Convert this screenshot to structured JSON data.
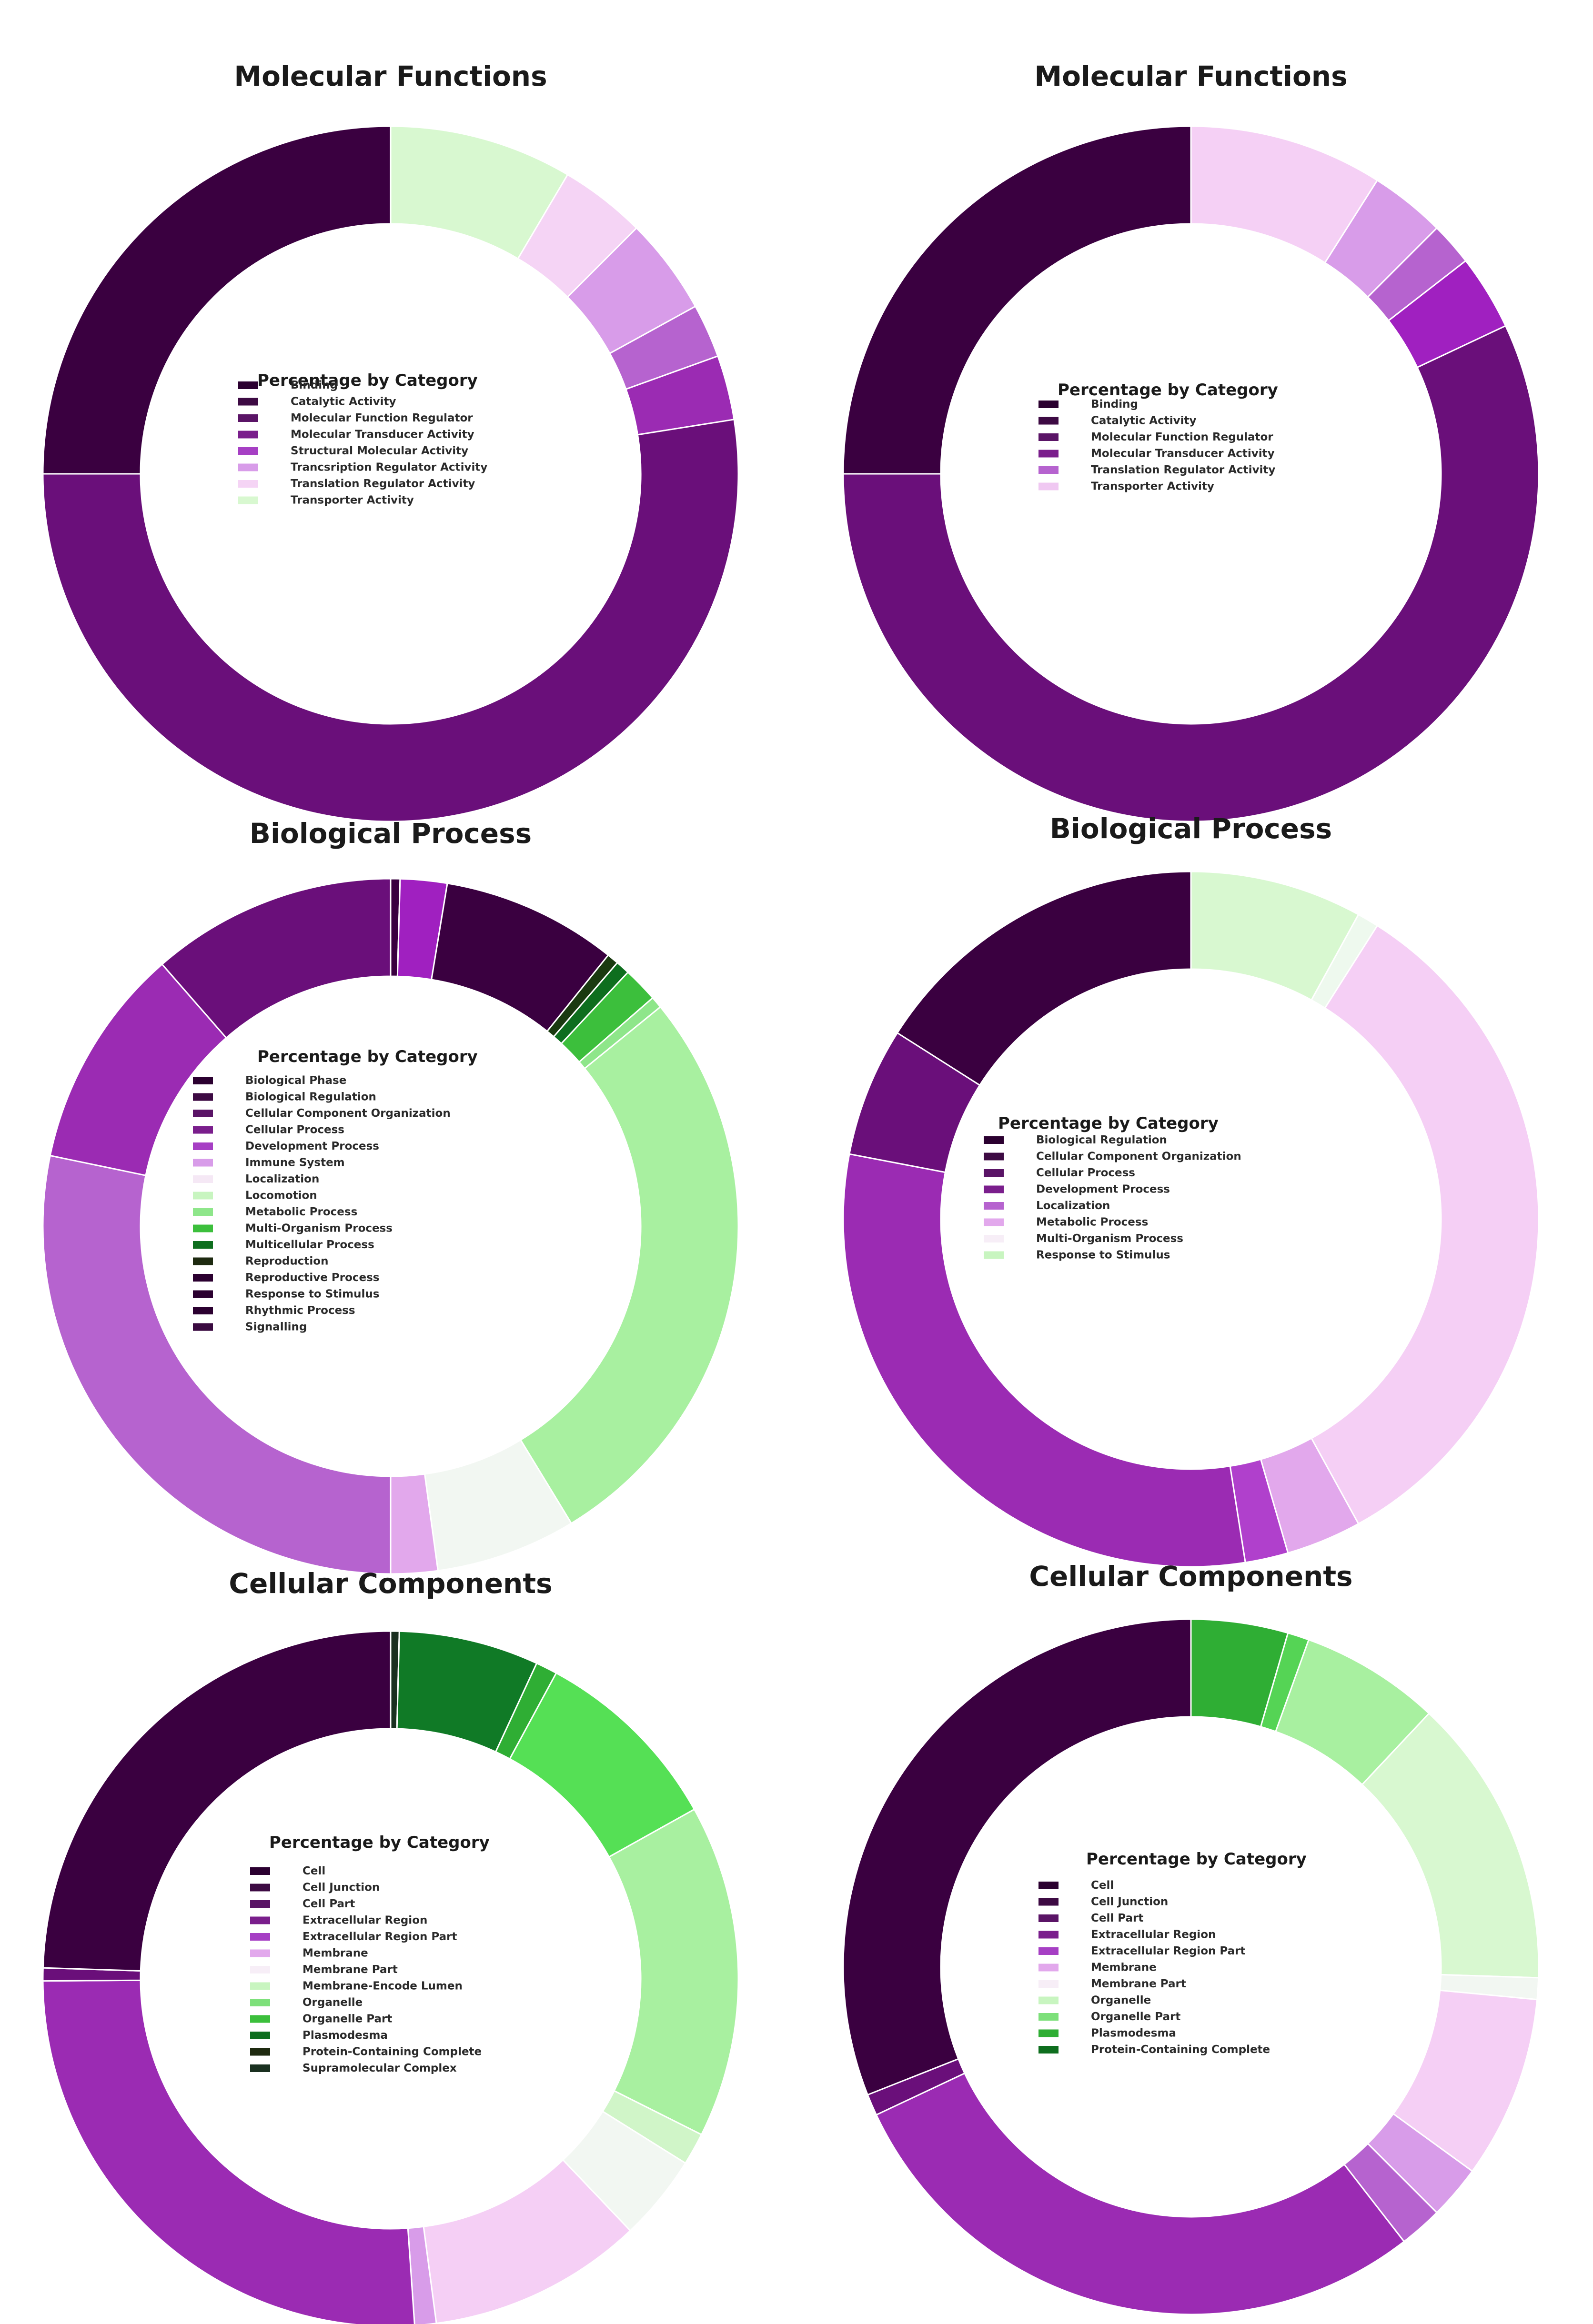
{
  "chart_data": [
    {
      "type": "pie",
      "title": "Molecular Functions",
      "legend_title": "Percentage by Category",
      "legend_items": [
        {
          "label": "Binding",
          "color": "#2b0030"
        },
        {
          "label": "Catalytic Activity",
          "color": "#3d0a43"
        },
        {
          "label": "Molecular Function Regulator",
          "color": "#5a1466"
        },
        {
          "label": "Molecular Transducer Activity",
          "color": "#7a1e8c"
        },
        {
          "label": "Structural Molecular Activity",
          "color": "#a63fc4"
        },
        {
          "label": "Trancsription Regulator Activity",
          "color": "#d89ce9"
        },
        {
          "label": "Translation Regulator Activity",
          "color": "#f5d4f5"
        },
        {
          "label": "Transporter Activity",
          "color": "#d8f8d0"
        }
      ],
      "slices": [
        {
          "label": "Transporter Activity",
          "value": 8.5,
          "color": "#d8f8d0"
        },
        {
          "label": "Translation Regulator Activity",
          "value": 4,
          "color": "#f5d4f5"
        },
        {
          "label": "Trancsription Regulator Activity",
          "value": 4.5,
          "color": "#d89ce9"
        },
        {
          "label": "Structural Molecular Activity",
          "value": 2.5,
          "color": "#b663cf"
        },
        {
          "label": "Molecular Transducer Activity",
          "value": 3,
          "color": "#9b2bb3"
        },
        {
          "label": "Catalytic Activity",
          "value": 52.5,
          "color": "#6a0f7a"
        },
        {
          "label": "Binding",
          "value": 25,
          "color": "#3a0040"
        }
      ]
    },
    {
      "type": "pie",
      "title": "Molecular Functions",
      "legend_title": "Percentage by Category",
      "legend_items": [
        {
          "label": "Binding",
          "color": "#2b0030"
        },
        {
          "label": "Catalytic Activity",
          "color": "#3d0a43"
        },
        {
          "label": "Molecular Function Regulator",
          "color": "#5a1466"
        },
        {
          "label": "Molecular Transducer Activity",
          "color": "#7a1e8c"
        },
        {
          "label": "Translation Regulator Activity",
          "color": "#b663cf"
        },
        {
          "label": "Transporter Activity",
          "color": "#f0c8f2"
        }
      ],
      "slices": [
        {
          "label": "Transporter Activity",
          "value": 9,
          "color": "#f5d0f5"
        },
        {
          "label": "Translation Regulator Activity",
          "value": 3.5,
          "color": "#d89ce9"
        },
        {
          "label": "Molecular Transducer Activity",
          "value": 2,
          "color": "#b663cf"
        },
        {
          "label": "Molecular Function Regulator",
          "value": 3.5,
          "color": "#a020c0"
        },
        {
          "label": "Catalytic Activity",
          "value": 57,
          "color": "#6a0f7a"
        },
        {
          "label": "Binding",
          "value": 25,
          "color": "#3a0040"
        }
      ]
    },
    {
      "type": "pie",
      "title": "Biological Process",
      "legend_title": "Percentage by Category",
      "legend_items": [
        {
          "label": "Biological Phase",
          "color": "#2b0030"
        },
        {
          "label": "Biological Regulation",
          "color": "#3d0a43"
        },
        {
          "label": "Cellular Component Organization",
          "color": "#5a1466"
        },
        {
          "label": "Cellular Process",
          "color": "#7a1e8c"
        },
        {
          "label": "Development Process",
          "color": "#a63fc4"
        },
        {
          "label": "Immune System",
          "color": "#d89ce9"
        },
        {
          "label": "Localization",
          "color": "#f5e8f5"
        },
        {
          "label": "Locomotion",
          "color": "#c8f5c0"
        },
        {
          "label": "Metabolic Process",
          "color": "#8ee68a"
        },
        {
          "label": "Multi-Organism Process",
          "color": "#3cbf3c"
        },
        {
          "label": "Multicellular Process",
          "color": "#0e6e1e"
        },
        {
          "label": "Reproduction",
          "color": "#1e2a10"
        },
        {
          "label": "Reproductive Process",
          "color": "#2b0030"
        },
        {
          "label": "Response to Stimulus",
          "color": "#2b0030"
        },
        {
          "label": "Rhythmic Process",
          "color": "#2b0030"
        },
        {
          "label": "Signalling",
          "color": "#3a0a40"
        }
      ],
      "slices": [
        {
          "label": "Biological Phase",
          "value": 0.4,
          "color": "#3a0040"
        },
        {
          "label": "Development Process",
          "value": 2,
          "color": "#a020c0"
        },
        {
          "label": "Biological Regulation",
          "value": 7.5,
          "color": "#3a0040"
        },
        {
          "label": "Reproduction",
          "value": 0.5,
          "color": "#1a3a10"
        },
        {
          "label": "Multicellular Process",
          "value": 0.6,
          "color": "#0e6e1e"
        },
        {
          "label": "Multi-Organism Process",
          "value": 1.5,
          "color": "#3cbf3c"
        },
        {
          "label": "Locomotion",
          "value": 0.5,
          "color": "#8ee68a"
        },
        {
          "label": "Metabolic Process",
          "value": 25,
          "color": "#a8f0a0"
        },
        {
          "label": "Localization",
          "value": 6,
          "color": "#f2f7f2"
        },
        {
          "label": "Immune System",
          "value": 2,
          "color": "#e2a8ec"
        },
        {
          "label": "Cellular Process",
          "value": 26,
          "color": "#b663cf"
        },
        {
          "label": "Cellular Component Organization",
          "value": 9.5,
          "color": "#9b2bb3"
        },
        {
          "label": "Signalling",
          "value": 10.5,
          "color": "#6a0f7a"
        }
      ]
    },
    {
      "type": "pie",
      "title": "Biological Process",
      "legend_title": "Percentage by Category",
      "legend_items": [
        {
          "label": "Biological Regulation",
          "color": "#2b0030"
        },
        {
          "label": "Cellular Component Organization",
          "color": "#3d0a43"
        },
        {
          "label": "Cellular Process",
          "color": "#5a1466"
        },
        {
          "label": "Development Process",
          "color": "#7a1e8c"
        },
        {
          "label": "Localization",
          "color": "#b663cf"
        },
        {
          "label": "Metabolic Process",
          "color": "#e2a8ec"
        },
        {
          "label": "Multi-Organism Process",
          "color": "#f7eef7"
        },
        {
          "label": "Response to Stimulus",
          "color": "#c8f5c0"
        }
      ],
      "slices": [
        {
          "label": "Response to Stimulus",
          "value": 8,
          "color": "#d8f8d0"
        },
        {
          "label": "Multi-Organism Process",
          "value": 1,
          "color": "#eef9ee"
        },
        {
          "label": "Metabolic Process",
          "value": 33,
          "color": "#f5cff5"
        },
        {
          "label": "Localization",
          "value": 3.5,
          "color": "#e2a8ec"
        },
        {
          "label": "Development Process",
          "value": 2,
          "color": "#b040cc"
        },
        {
          "label": "Cellular Process",
          "value": 30.5,
          "color": "#9b2bb3"
        },
        {
          "label": "Cellular Component Organization",
          "value": 6,
          "color": "#6a0f7a"
        },
        {
          "label": "Biological Regulation",
          "value": 16,
          "color": "#3a0040"
        }
      ]
    },
    {
      "type": "pie",
      "title": "Cellular Components",
      "legend_title": "Percentage by Category",
      "legend_items": [
        {
          "label": "Cell",
          "color": "#2b0030"
        },
        {
          "label": "Cell Junction",
          "color": "#3d0a43"
        },
        {
          "label": "Cell Part",
          "color": "#5a1466"
        },
        {
          "label": "Extracellular Region",
          "color": "#7a1e8c"
        },
        {
          "label": "Extracellular Region Part",
          "color": "#a63fc4"
        },
        {
          "label": "Membrane",
          "color": "#e2a8ec"
        },
        {
          "label": "Membrane Part",
          "color": "#f7eef7"
        },
        {
          "label": "Membrane-Encode Lumen",
          "color": "#c8f5c0"
        },
        {
          "label": "Organelle",
          "color": "#7de07a"
        },
        {
          "label": "Organelle Part",
          "color": "#3cbf3c"
        },
        {
          "label": "Plasmodesma",
          "color": "#0e6e1e"
        },
        {
          "label": "Protein-Containing Complete",
          "color": "#1e2a10"
        },
        {
          "label": "Supramolecular Complex",
          "color": "#1a3020"
        }
      ],
      "slices": [
        {
          "label": "Supramolecular Complex",
          "value": 0.4,
          "color": "#1a3020"
        },
        {
          "label": "Plasmodesma",
          "value": 6.5,
          "color": "#107a26"
        },
        {
          "label": "Organelle Part",
          "value": 1,
          "color": "#2fae34"
        },
        {
          "label": "Organelle",
          "value": 9,
          "color": "#55e055"
        },
        {
          "label": "Membrane-Encode Lumen",
          "value": 15.5,
          "color": "#a8f0a0"
        },
        {
          "label": "Membrane Part",
          "value": 1.5,
          "color": "#d0f5c8"
        },
        {
          "label": "Membrane",
          "value": 4,
          "color": "#f2f7f2"
        },
        {
          "label": "Extracellular Region Part",
          "value": 10,
          "color": "#f5cff5"
        },
        {
          "label": "Extracellular Region",
          "value": 1,
          "color": "#d89ce9"
        },
        {
          "label": "Cell Part",
          "value": 26,
          "color": "#9b2bb3"
        },
        {
          "label": "Cell Junction",
          "value": 0.6,
          "color": "#6a0f7a"
        },
        {
          "label": "Cell",
          "value": 24.5,
          "color": "#3a0040"
        }
      ]
    },
    {
      "type": "pie",
      "title": "Cellular Components",
      "legend_title": "Percentage by Category",
      "legend_items": [
        {
          "label": "Cell",
          "color": "#2b0030"
        },
        {
          "label": "Cell Junction",
          "color": "#3d0a43"
        },
        {
          "label": "Cell Part",
          "color": "#5a1466"
        },
        {
          "label": "Extracellular Region",
          "color": "#7a1e8c"
        },
        {
          "label": "Extracellular Region Part",
          "color": "#a63fc4"
        },
        {
          "label": "Membrane",
          "color": "#e2a8ec"
        },
        {
          "label": "Membrane Part",
          "color": "#f7eef7"
        },
        {
          "label": "Organelle",
          "color": "#c8f5c0"
        },
        {
          "label": "Organelle Part",
          "color": "#7de07a"
        },
        {
          "label": "Plasmodesma",
          "color": "#2fae34"
        },
        {
          "label": "Protein-Containing Complete",
          "color": "#0e6e1e"
        }
      ],
      "slices": [
        {
          "label": "Protein-Containing Complete",
          "value": 4.5,
          "color": "#2fae34"
        },
        {
          "label": "Plasmodesma",
          "value": 1,
          "color": "#55d455"
        },
        {
          "label": "Organelle Part",
          "value": 6.5,
          "color": "#a8f0a0"
        },
        {
          "label": "Organelle",
          "value": 13.5,
          "color": "#d8f8d0"
        },
        {
          "label": "Membrane Part",
          "value": 1,
          "color": "#f2f7f2"
        },
        {
          "label": "Membrane",
          "value": 8.5,
          "color": "#f5cff5"
        },
        {
          "label": "Extracellular Region Part",
          "value": 2.5,
          "color": "#d89ce9"
        },
        {
          "label": "Extracellular Region",
          "value": 2,
          "color": "#b663cf"
        },
        {
          "label": "Cell Part",
          "value": 28.5,
          "color": "#9b2bb3"
        },
        {
          "label": "Cell Junction",
          "value": 1,
          "color": "#6a0f7a"
        },
        {
          "label": "Cell",
          "value": 31,
          "color": "#3a0040"
        }
      ]
    }
  ]
}
